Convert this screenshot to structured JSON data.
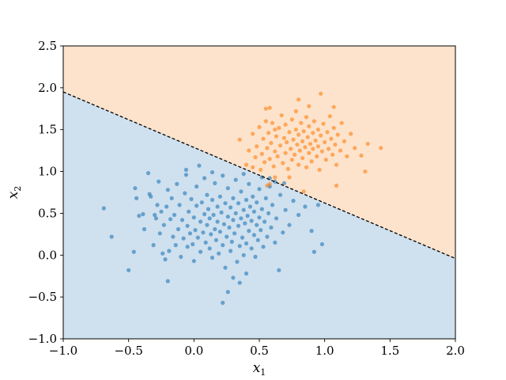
{
  "chart_data": {
    "type": "scatter",
    "xlabel": "x",
    "xlabel_subscript": "1",
    "ylabel": "x",
    "ylabel_subscript": "2",
    "xlim": [
      -1.0,
      2.0
    ],
    "ylim": [
      -1.0,
      2.5
    ],
    "x_ticks": [
      -1.0,
      -0.5,
      0.0,
      0.5,
      1.0,
      1.5,
      2.0
    ],
    "y_ticks": [
      -1.0,
      -0.5,
      0.0,
      0.5,
      1.0,
      1.5,
      2.0,
      2.5
    ],
    "x_tick_labels": [
      "−1.0",
      "−0.5",
      "0.0",
      "0.5",
      "1.0",
      "1.5",
      "2.0"
    ],
    "y_tick_labels": [
      "−1.0",
      "−0.5",
      "0.0",
      "0.5",
      "1.0",
      "1.5",
      "2.0",
      "2.5"
    ],
    "grid": false,
    "decision_boundary": {
      "style": "dashed",
      "color": "#000000",
      "points": [
        [
          -1.0,
          1.95
        ],
        [
          2.0,
          -0.04
        ]
      ]
    },
    "regions": [
      {
        "class": 0,
        "side": "below",
        "color": "#cfe0ef"
      },
      {
        "class": 1,
        "side": "above",
        "color": "#fde3cc"
      }
    ],
    "series": [
      {
        "color": "#1f77b4",
        "points": [
          [
            -0.69,
            0.56
          ],
          [
            -0.63,
            0.22
          ],
          [
            -0.5,
            -0.18
          ],
          [
            -0.46,
            0.04
          ],
          [
            -0.45,
            0.8
          ],
          [
            -0.44,
            0.68
          ],
          [
            -0.42,
            0.47
          ],
          [
            -0.39,
            0.49
          ],
          [
            -0.38,
            0.31
          ],
          [
            -0.35,
            0.98
          ],
          [
            -0.34,
            0.73
          ],
          [
            -0.33,
            0.7
          ],
          [
            -0.31,
            0.12
          ],
          [
            -0.3,
            0.48
          ],
          [
            -0.29,
            0.44
          ],
          [
            -0.28,
            0.6
          ],
          [
            -0.27,
            0.88
          ],
          [
            -0.26,
            0.26
          ],
          [
            -0.25,
            0.52
          ],
          [
            -0.24,
            0.02
          ],
          [
            -0.23,
            0.36
          ],
          [
            -0.22,
            -0.05
          ],
          [
            -0.21,
            0.58
          ],
          [
            -0.2,
            0.78
          ],
          [
            -0.2,
            -0.31
          ],
          [
            -0.19,
            0.05
          ],
          [
            -0.18,
            0.43
          ],
          [
            -0.17,
            0.68
          ],
          [
            -0.16,
            0.22
          ],
          [
            -0.15,
            0.48
          ],
          [
            -0.14,
            0.12
          ],
          [
            -0.13,
            0.85
          ],
          [
            -0.12,
            0.31
          ],
          [
            -0.11,
            0.6
          ],
          [
            -0.1,
            -0.02
          ],
          [
            -0.09,
            0.42
          ],
          [
            -0.08,
            0.2
          ],
          [
            -0.07,
            0.74
          ],
          [
            -0.06,
            0.96
          ],
          [
            -0.05,
            0.1
          ],
          [
            -0.05,
            0.35
          ],
          [
            -0.04,
            0.52
          ],
          [
            -0.03,
            0.26
          ],
          [
            -0.02,
            0.67
          ],
          [
            -0.01,
            0.13
          ],
          [
            0.0,
            0.45
          ],
          [
            0.0,
            -0.07
          ],
          [
            0.01,
            0.3
          ],
          [
            0.02,
            0.82
          ],
          [
            0.02,
            0.59
          ],
          [
            0.03,
            0.21
          ],
          [
            0.04,
            1.07
          ],
          [
            0.05,
            0.4
          ],
          [
            0.05,
            0.04
          ],
          [
            0.06,
            0.63
          ],
          [
            0.07,
            0.27
          ],
          [
            0.08,
            0.49
          ],
          [
            0.08,
            0.92
          ],
          [
            0.09,
            0.15
          ],
          [
            0.1,
            0.36
          ],
          [
            0.1,
            0.72
          ],
          [
            0.11,
            0.55
          ],
          [
            0.12,
            0.08
          ],
          [
            0.12,
            0.44
          ],
          [
            0.13,
            0.25
          ],
          [
            0.14,
            0.66
          ],
          [
            0.14,
            -0.03
          ],
          [
            0.15,
            0.48
          ],
          [
            0.16,
            0.31
          ],
          [
            0.16,
            0.86
          ],
          [
            0.17,
            0.18
          ],
          [
            0.18,
            0.58
          ],
          [
            0.18,
            0.4
          ],
          [
            0.19,
            0.02
          ],
          [
            0.2,
            0.7
          ],
          [
            0.2,
            0.28
          ],
          [
            0.21,
            0.51
          ],
          [
            0.22,
            0.12
          ],
          [
            0.22,
            0.95
          ],
          [
            0.23,
            0.37
          ],
          [
            0.24,
            0.62
          ],
          [
            0.24,
            -0.15
          ],
          [
            0.25,
            0.22
          ],
          [
            0.26,
            0.46
          ],
          [
            0.26,
            0.8
          ],
          [
            0.27,
            0.33
          ],
          [
            0.28,
            0.05
          ],
          [
            0.28,
            0.57
          ],
          [
            0.29,
            0.16
          ],
          [
            0.3,
            0.42
          ],
          [
            0.3,
            0.68
          ],
          [
            0.31,
            0.26
          ],
          [
            0.32,
            0.9
          ],
          [
            0.32,
            0.5
          ],
          [
            0.33,
            -0.08
          ],
          [
            0.34,
            0.35
          ],
          [
            0.34,
            0.62
          ],
          [
            0.35,
            0.11
          ],
          [
            0.36,
            0.44
          ],
          [
            0.36,
            0.76
          ],
          [
            0.37,
            0.21
          ],
          [
            0.38,
            0.54
          ],
          [
            0.38,
            0.0
          ],
          [
            0.39,
            0.38
          ],
          [
            0.4,
            0.66
          ],
          [
            0.4,
            0.14
          ],
          [
            0.41,
            0.47
          ],
          [
            0.42,
            0.85
          ],
          [
            0.42,
            0.29
          ],
          [
            0.43,
            0.58
          ],
          [
            0.44,
            0.08
          ],
          [
            0.44,
            0.41
          ],
          [
            0.45,
            0.7
          ],
          [
            0.46,
            0.24
          ],
          [
            0.46,
            0.52
          ],
          [
            0.47,
            -0.02
          ],
          [
            0.48,
            0.36
          ],
          [
            0.48,
            0.63
          ],
          [
            0.49,
            0.18
          ],
          [
            0.5,
            0.45
          ],
          [
            0.5,
            0.79
          ],
          [
            0.51,
            0.3
          ],
          [
            0.52,
            0.55
          ],
          [
            0.53,
            0.1
          ],
          [
            0.54,
            0.4
          ],
          [
            0.55,
            0.68
          ],
          [
            0.56,
            0.22
          ],
          [
            0.57,
            0.5
          ],
          [
            0.58,
            0.82
          ],
          [
            0.59,
            0.33
          ],
          [
            0.6,
            0.6
          ],
          [
            0.62,
            0.15
          ],
          [
            0.63,
            0.44
          ],
          [
            0.65,
            -0.18
          ],
          [
            0.66,
            0.72
          ],
          [
            0.68,
            0.27
          ],
          [
            0.7,
            0.54
          ],
          [
            0.73,
            0.36
          ],
          [
            0.76,
            0.65
          ],
          [
            0.8,
            0.48
          ],
          [
            0.85,
            0.58
          ],
          [
            0.9,
            0.29
          ],
          [
            0.92,
            0.04
          ],
          [
            0.95,
            0.6
          ],
          [
            0.98,
            0.13
          ],
          [
            0.22,
            -0.57
          ],
          [
            0.26,
            -0.44
          ],
          [
            0.3,
            -0.27
          ],
          [
            0.35,
            -0.33
          ],
          [
            0.4,
            -0.22
          ],
          [
            -0.06,
            1.02
          ],
          [
            0.14,
            0.99
          ],
          [
            0.38,
            0.97
          ],
          [
            0.52,
            0.93
          ],
          [
            0.58,
            0.92
          ],
          [
            0.62,
            0.88
          ],
          [
            0.69,
            0.86
          ]
        ]
      },
      {
        "color": "#ff7f0e",
        "points": [
          [
            0.35,
            1.38
          ],
          [
            0.4,
            1.08
          ],
          [
            0.42,
            1.25
          ],
          [
            0.45,
            1.45
          ],
          [
            0.47,
            1.17
          ],
          [
            0.48,
            1.3
          ],
          [
            0.5,
            1.53
          ],
          [
            0.51,
            1.02
          ],
          [
            0.52,
            1.21
          ],
          [
            0.53,
            1.39
          ],
          [
            0.54,
            1.11
          ],
          [
            0.55,
            1.6
          ],
          [
            0.56,
            1.28
          ],
          [
            0.57,
            1.46
          ],
          [
            0.58,
            1.15
          ],
          [
            0.59,
            1.34
          ],
          [
            0.6,
            1.58
          ],
          [
            0.61,
            1.06
          ],
          [
            0.62,
            1.24
          ],
          [
            0.63,
            1.42
          ],
          [
            0.64,
            1.18
          ],
          [
            0.65,
            1.52
          ],
          [
            0.66,
            1.31
          ],
          [
            0.67,
            1.67
          ],
          [
            0.68,
            1.1
          ],
          [
            0.69,
            1.4
          ],
          [
            0.7,
            1.22
          ],
          [
            0.7,
            1.56
          ],
          [
            0.71,
            1.35
          ],
          [
            0.72,
            1.03
          ],
          [
            0.73,
            1.47
          ],
          [
            0.74,
            1.27
          ],
          [
            0.75,
            1.62
          ],
          [
            0.75,
            1.14
          ],
          [
            0.76,
            1.38
          ],
          [
            0.77,
            1.2
          ],
          [
            0.78,
            1.5
          ],
          [
            0.78,
            1.72
          ],
          [
            0.79,
            1.32
          ],
          [
            0.8,
            1.08
          ],
          [
            0.8,
            1.44
          ],
          [
            0.81,
            1.25
          ],
          [
            0.82,
            1.58
          ],
          [
            0.83,
            1.36
          ],
          [
            0.83,
            1.16
          ],
          [
            0.84,
            1.48
          ],
          [
            0.85,
            1.29
          ],
          [
            0.86,
            1.65
          ],
          [
            0.86,
            1.05
          ],
          [
            0.87,
            1.41
          ],
          [
            0.88,
            1.22
          ],
          [
            0.88,
            1.54
          ],
          [
            0.89,
            1.33
          ],
          [
            0.9,
            1.12
          ],
          [
            0.91,
            1.46
          ],
          [
            0.91,
            1.27
          ],
          [
            0.92,
            1.6
          ],
          [
            0.93,
            1.37
          ],
          [
            0.94,
            1.18
          ],
          [
            0.95,
            1.5
          ],
          [
            0.95,
            1.3
          ],
          [
            0.96,
            1.02
          ],
          [
            0.97,
            1.43
          ],
          [
            0.98,
            1.24
          ],
          [
            0.99,
            1.57
          ],
          [
            1.0,
            1.35
          ],
          [
            1.01,
            1.14
          ],
          [
            1.02,
            1.47
          ],
          [
            1.03,
            1.27
          ],
          [
            1.04,
            1.66
          ],
          [
            1.05,
            1.39
          ],
          [
            1.06,
            1.2
          ],
          [
            1.07,
            1.52
          ],
          [
            1.08,
            1.32
          ],
          [
            1.09,
            1.08
          ],
          [
            1.1,
            1.44
          ],
          [
            1.12,
            1.25
          ],
          [
            1.13,
            1.58
          ],
          [
            1.15,
            1.36
          ],
          [
            1.17,
            1.18
          ],
          [
            1.2,
            1.45
          ],
          [
            1.23,
            1.28
          ],
          [
            1.28,
            1.19
          ],
          [
            1.33,
            1.33
          ],
          [
            1.43,
            1.28
          ],
          [
            1.31,
            1.0
          ],
          [
            1.09,
            0.83
          ],
          [
            0.73,
            0.93
          ],
          [
            0.62,
            0.93
          ],
          [
            0.58,
            0.85
          ],
          [
            0.56,
            0.83
          ],
          [
            0.84,
            0.76
          ],
          [
            0.58,
            1.76
          ],
          [
            0.88,
            1.78
          ],
          [
            0.97,
            1.93
          ],
          [
            1.07,
            1.77
          ],
          [
            0.8,
            1.86
          ],
          [
            0.55,
            1.75
          ],
          [
            0.45,
            1.05
          ],
          [
            0.62,
            1.5
          ]
        ]
      }
    ]
  }
}
